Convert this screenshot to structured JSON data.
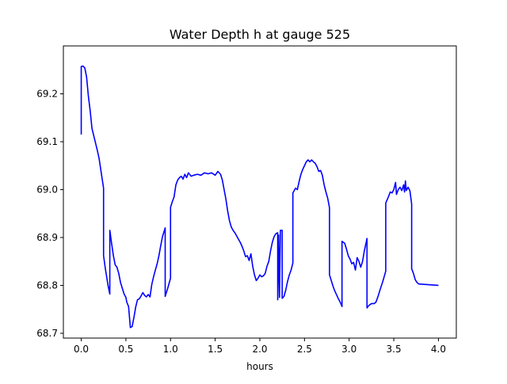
{
  "chart_data": {
    "type": "line",
    "title": "Water Depth h at gauge 525",
    "xlabel": "hours",
    "ylabel": "",
    "xlim": [
      -0.2,
      4.2
    ],
    "ylim": [
      68.69,
      69.3
    ],
    "x_ticks": [
      0.0,
      0.5,
      1.0,
      1.5,
      2.0,
      2.5,
      3.0,
      3.5,
      4.0
    ],
    "x_tick_labels": [
      "0.0",
      "0.5",
      "1.0",
      "1.5",
      "2.0",
      "2.5",
      "3.0",
      "3.5",
      "4.0"
    ],
    "y_ticks": [
      68.7,
      68.8,
      68.9,
      69.0,
      69.1,
      69.2
    ],
    "y_tick_labels": [
      "68.7",
      "68.8",
      "68.9",
      "69.0",
      "69.1",
      "69.2"
    ],
    "grid": false,
    "legend": "none",
    "series": [
      {
        "color": "#0000ff",
        "points": [
          [
            0.0,
            69.115
          ],
          [
            0.0,
            69.257
          ],
          [
            0.02,
            69.258
          ],
          [
            0.04,
            69.254
          ],
          [
            0.06,
            69.235
          ],
          [
            0.08,
            69.195
          ],
          [
            0.1,
            69.165
          ],
          [
            0.12,
            69.128
          ],
          [
            0.15,
            69.105
          ],
          [
            0.18,
            69.082
          ],
          [
            0.2,
            69.065
          ],
          [
            0.22,
            69.04
          ],
          [
            0.25,
            69.003
          ],
          [
            0.25,
            68.862
          ],
          [
            0.27,
            68.835
          ],
          [
            0.3,
            68.8
          ],
          [
            0.32,
            68.782
          ],
          [
            0.32,
            68.915
          ],
          [
            0.34,
            68.888
          ],
          [
            0.36,
            68.862
          ],
          [
            0.38,
            68.843
          ],
          [
            0.4,
            68.838
          ],
          [
            0.42,
            68.825
          ],
          [
            0.44,
            68.806
          ],
          [
            0.46,
            68.794
          ],
          [
            0.48,
            68.782
          ],
          [
            0.5,
            68.775
          ],
          [
            0.51,
            68.765
          ],
          [
            0.53,
            68.756
          ],
          [
            0.55,
            68.712
          ],
          [
            0.57,
            68.714
          ],
          [
            0.59,
            68.733
          ],
          [
            0.61,
            68.755
          ],
          [
            0.63,
            68.77
          ],
          [
            0.65,
            68.772
          ],
          [
            0.67,
            68.778
          ],
          [
            0.69,
            68.785
          ],
          [
            0.71,
            68.779
          ],
          [
            0.73,
            68.776
          ],
          [
            0.75,
            68.781
          ],
          [
            0.77,
            68.776
          ],
          [
            0.79,
            68.802
          ],
          [
            0.81,
            68.818
          ],
          [
            0.83,
            68.832
          ],
          [
            0.85,
            68.845
          ],
          [
            0.87,
            68.862
          ],
          [
            0.89,
            68.883
          ],
          [
            0.91,
            68.902
          ],
          [
            0.94,
            68.92
          ],
          [
            0.94,
            68.777
          ],
          [
            0.97,
            68.795
          ],
          [
            1.0,
            68.815
          ],
          [
            1.0,
            68.963
          ],
          [
            1.02,
            68.975
          ],
          [
            1.04,
            68.985
          ],
          [
            1.06,
            69.01
          ],
          [
            1.08,
            69.02
          ],
          [
            1.1,
            69.025
          ],
          [
            1.12,
            69.028
          ],
          [
            1.14,
            69.022
          ],
          [
            1.16,
            69.032
          ],
          [
            1.18,
            69.025
          ],
          [
            1.2,
            69.035
          ],
          [
            1.23,
            69.028
          ],
          [
            1.26,
            69.03
          ],
          [
            1.3,
            69.032
          ],
          [
            1.34,
            69.03
          ],
          [
            1.38,
            69.035
          ],
          [
            1.42,
            69.033
          ],
          [
            1.46,
            69.035
          ],
          [
            1.5,
            69.03
          ],
          [
            1.53,
            69.038
          ],
          [
            1.56,
            69.032
          ],
          [
            1.58,
            69.02
          ],
          [
            1.6,
            69.0
          ],
          [
            1.62,
            68.98
          ],
          [
            1.64,
            68.955
          ],
          [
            1.66,
            68.935
          ],
          [
            1.68,
            68.922
          ],
          [
            1.7,
            68.915
          ],
          [
            1.72,
            68.91
          ],
          [
            1.75,
            68.9
          ],
          [
            1.78,
            68.89
          ],
          [
            1.8,
            68.882
          ],
          [
            1.82,
            68.872
          ],
          [
            1.84,
            68.86
          ],
          [
            1.86,
            68.862
          ],
          [
            1.88,
            68.852
          ],
          [
            1.9,
            68.866
          ],
          [
            1.92,
            68.84
          ],
          [
            1.94,
            68.822
          ],
          [
            1.96,
            68.81
          ],
          [
            1.98,
            68.815
          ],
          [
            2.0,
            68.822
          ],
          [
            2.02,
            68.818
          ],
          [
            2.04,
            68.82
          ],
          [
            2.06,
            68.825
          ],
          [
            2.08,
            68.84
          ],
          [
            2.1,
            68.85
          ],
          [
            2.12,
            68.872
          ],
          [
            2.14,
            68.89
          ],
          [
            2.16,
            68.902
          ],
          [
            2.18,
            68.908
          ],
          [
            2.2,
            68.91
          ],
          [
            2.2,
            68.77
          ],
          [
            2.21,
            68.905
          ],
          [
            2.22,
            68.775
          ],
          [
            2.23,
            68.915
          ],
          [
            2.25,
            68.915
          ],
          [
            2.25,
            68.773
          ],
          [
            2.27,
            68.777
          ],
          [
            2.29,
            68.79
          ],
          [
            2.31,
            68.808
          ],
          [
            2.33,
            68.822
          ],
          [
            2.35,
            68.832
          ],
          [
            2.37,
            68.847
          ],
          [
            2.37,
            68.993
          ],
          [
            2.4,
            69.003
          ],
          [
            2.42,
            69.0
          ],
          [
            2.44,
            69.017
          ],
          [
            2.46,
            69.032
          ],
          [
            2.48,
            69.042
          ],
          [
            2.5,
            69.05
          ],
          [
            2.52,
            69.058
          ],
          [
            2.54,
            69.062
          ],
          [
            2.56,
            69.058
          ],
          [
            2.58,
            69.062
          ],
          [
            2.6,
            69.058
          ],
          [
            2.62,
            69.055
          ],
          [
            2.64,
            69.048
          ],
          [
            2.66,
            69.038
          ],
          [
            2.68,
            69.04
          ],
          [
            2.7,
            69.03
          ],
          [
            2.72,
            69.01
          ],
          [
            2.74,
            68.995
          ],
          [
            2.76,
            68.982
          ],
          [
            2.78,
            68.962
          ],
          [
            2.78,
            68.822
          ],
          [
            2.8,
            68.81
          ],
          [
            2.82,
            68.798
          ],
          [
            2.84,
            68.788
          ],
          [
            2.86,
            68.78
          ],
          [
            2.88,
            68.772
          ],
          [
            2.9,
            68.765
          ],
          [
            2.92,
            68.756
          ],
          [
            2.92,
            68.892
          ],
          [
            2.95,
            68.888
          ],
          [
            2.97,
            68.876
          ],
          [
            2.99,
            68.862
          ],
          [
            3.01,
            68.855
          ],
          [
            3.03,
            68.845
          ],
          [
            3.05,
            68.848
          ],
          [
            3.07,
            68.832
          ],
          [
            3.09,
            68.858
          ],
          [
            3.11,
            68.85
          ],
          [
            3.13,
            68.838
          ],
          [
            3.15,
            68.85
          ],
          [
            3.17,
            68.872
          ],
          [
            3.2,
            68.898
          ],
          [
            3.2,
            68.753
          ],
          [
            3.22,
            68.758
          ],
          [
            3.25,
            68.762
          ],
          [
            3.28,
            68.762
          ],
          [
            3.3,
            68.765
          ],
          [
            3.32,
            68.775
          ],
          [
            3.35,
            68.793
          ],
          [
            3.38,
            68.81
          ],
          [
            3.41,
            68.83
          ],
          [
            3.41,
            68.972
          ],
          [
            3.44,
            68.985
          ],
          [
            3.46,
            68.995
          ],
          [
            3.48,
            68.993
          ],
          [
            3.5,
            69.0
          ],
          [
            3.52,
            69.015
          ],
          [
            3.53,
            68.99
          ],
          [
            3.55,
            69.0
          ],
          [
            3.57,
            69.005
          ],
          [
            3.59,
            68.998
          ],
          [
            3.61,
            69.01
          ],
          [
            3.62,
            68.995
          ],
          [
            3.63,
            69.018
          ],
          [
            3.64,
            68.998
          ],
          [
            3.66,
            69.005
          ],
          [
            3.68,
            68.998
          ],
          [
            3.7,
            68.97
          ],
          [
            3.7,
            68.835
          ],
          [
            3.72,
            68.825
          ],
          [
            3.74,
            68.812
          ],
          [
            3.76,
            68.806
          ],
          [
            3.78,
            68.803
          ],
          [
            4.0,
            68.8
          ]
        ]
      }
    ]
  }
}
